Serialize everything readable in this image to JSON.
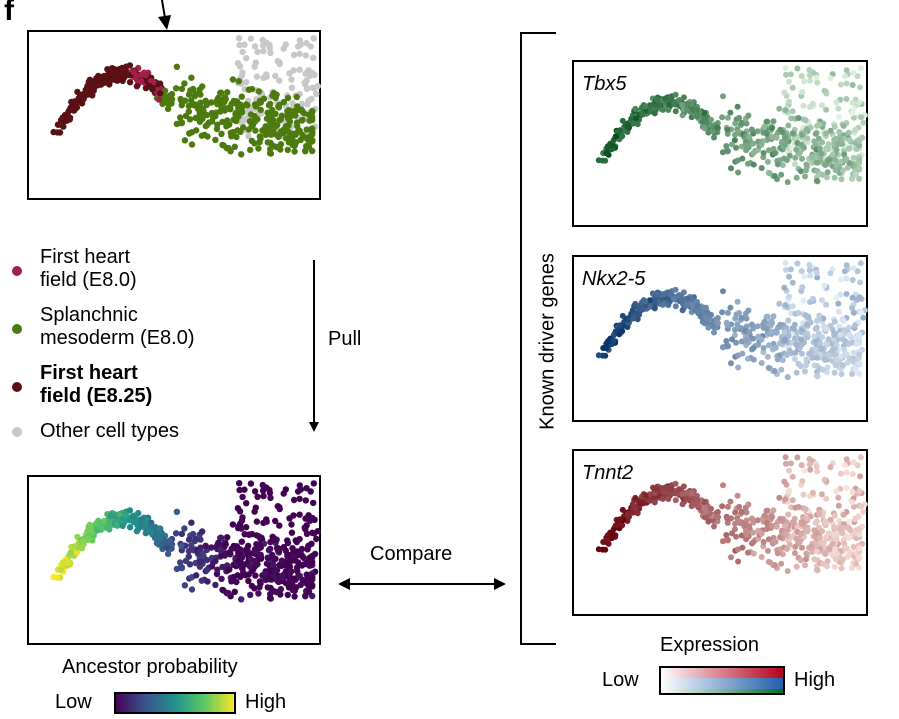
{
  "figure": {
    "panel_letter": "f",
    "legend": {
      "items": [
        {
          "label_lines": [
            "First heart",
            "field (E8.0)"
          ],
          "color": "#a0204a",
          "bold": false
        },
        {
          "label_lines": [
            "Splanchnic",
            "mesoderm (E8.0)"
          ],
          "color": "#4d7a0f",
          "bold": false
        },
        {
          "label_lines": [
            "First heart",
            "field (E8.25)"
          ],
          "color": "#5a1015",
          "bold": true
        },
        {
          "label_lines": [
            "Other cell types"
          ],
          "color": "#c8c8c8",
          "bold": false
        }
      ]
    },
    "pull_label": "Pull",
    "compare_label": "Compare",
    "ancestor_probability": {
      "title": "Ancestor probability",
      "low_label": "Low",
      "high_label": "High",
      "colormap": [
        "#440154",
        "#3b528b",
        "#21918c",
        "#5ec962",
        "#fde725"
      ]
    },
    "bracket_label": "Known driver genes",
    "genes": [
      {
        "name": "Tbx5",
        "colormap": [
          "#e6f5e6",
          "#004d1a"
        ]
      },
      {
        "name": "Nkx2-5",
        "colormap": [
          "#e6eff9",
          "#08366b"
        ]
      },
      {
        "name": "Tnnt2",
        "colormap": [
          "#fde8e0",
          "#67000d"
        ]
      }
    ],
    "expression": {
      "title": "Expression",
      "low_label": "Low",
      "high_label": "High",
      "colors": {
        "red": "#67000d",
        "blue": "#08306b",
        "green": "#00441b"
      }
    }
  }
}
